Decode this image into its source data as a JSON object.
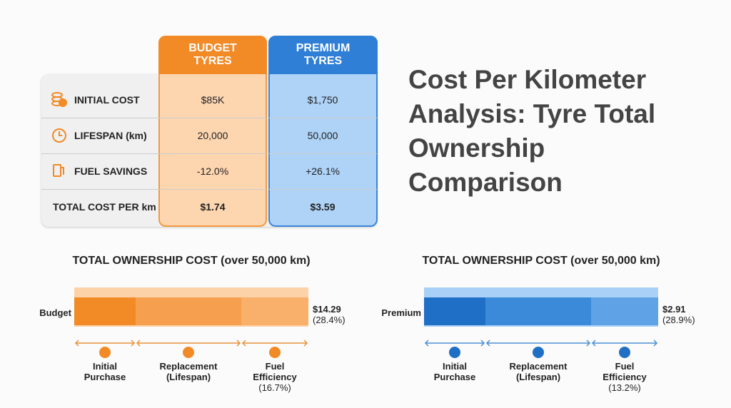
{
  "header": {
    "title": "Cost Per Kilometer Analysis: Tyre Total Ownership Comparison"
  },
  "table": {
    "columns": [
      "BUDGET TYRES",
      "PREMIUM TYRES"
    ],
    "rows": [
      {
        "label": "INITIAL COST",
        "cells": [
          "$85K",
          "$1,750"
        ]
      },
      {
        "label": "LIFESPAN (km)",
        "cells": [
          "20,000",
          "50,000"
        ]
      },
      {
        "label": "FUEL SAVINGS",
        "cells": [
          "-12.0%",
          "+26.1%"
        ]
      },
      {
        "label": "TOTAL COST PER km",
        "cells": [
          "$1.74",
          "$3.59"
        ]
      }
    ]
  },
  "panels": [
    {
      "title": "TOTAL OWNERSHIP COST (over 50,000 km)",
      "bar_label": "Budget",
      "total": "$14.29",
      "share": "(28.4%)",
      "segments": [
        {
          "label": "Initial Purchase"
        },
        {
          "label": "Replacement (Lifespan)"
        },
        {
          "label": "Fuel Efficiency",
          "share": "(16.7%)"
        }
      ]
    },
    {
      "title": "TOTAL OWNERSHIP COST (over 50,000 km)",
      "bar_label": "Premium",
      "total": "$2.91",
      "share": "(28.9%)",
      "segments": [
        {
          "label": "Initial Purchase"
        },
        {
          "label": "Replacement (Lifespan)"
        },
        {
          "label": "Fuel Efficiency",
          "share": "(13.2%)"
        }
      ]
    }
  ]
}
